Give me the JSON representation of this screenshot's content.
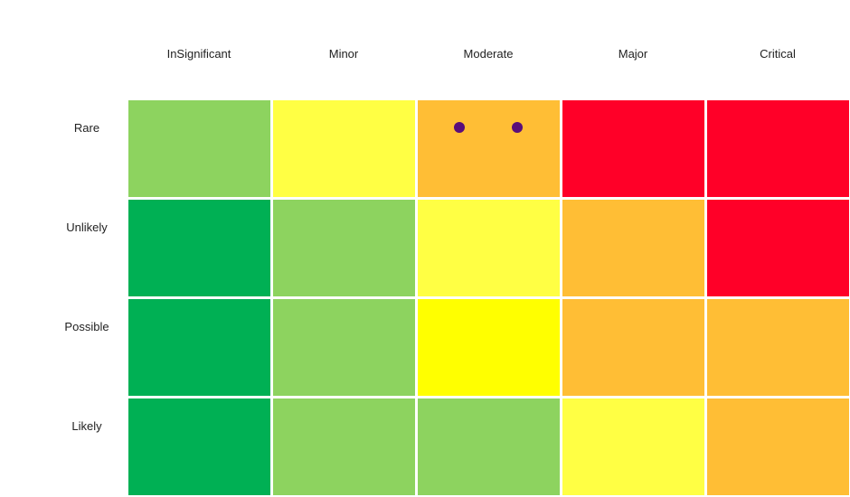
{
  "chart_data": {
    "type": "heatmap",
    "columns": [
      "InSignificant",
      "Minor",
      "Moderate",
      "Major",
      "Critical"
    ],
    "rows": [
      "Rare",
      "Unlikely",
      "Possible",
      "Likely"
    ],
    "cell_colors": [
      [
        "#8dd35f",
        "#ffff44",
        "#ffbe35",
        "#ff0028",
        "#ff0028"
      ],
      [
        "#00b054",
        "#8dd35f",
        "#ffff44",
        "#ffbe35",
        "#ff0028"
      ],
      [
        "#00b054",
        "#8dd35f",
        "#ffff00",
        "#ffbe35",
        "#ffbe35"
      ],
      [
        "#00b054",
        "#8dd35f",
        "#8dd35f",
        "#ffff44",
        "#ffbe35"
      ]
    ],
    "points": [
      {
        "row": "Rare",
        "column": "Moderate",
        "offset": -0.2
      },
      {
        "row": "Rare",
        "column": "Moderate",
        "offset": 0.2
      }
    ],
    "point_color": "#5a0d7a",
    "legend": "none"
  }
}
